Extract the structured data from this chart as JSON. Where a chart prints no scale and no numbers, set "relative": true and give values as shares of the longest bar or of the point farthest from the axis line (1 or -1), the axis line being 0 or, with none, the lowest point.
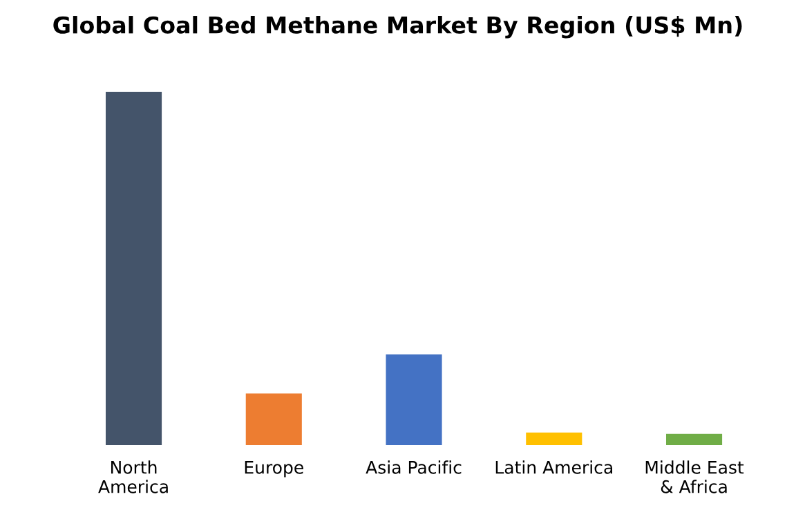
{
  "chart_data": {
    "type": "bar",
    "title": "Global Coal Bed Methane Market By Region (US$ Mn)",
    "categories": [
      "North\nAmerica",
      "Europe",
      "Asia Pacific",
      "Latin America",
      "Middle East\n& Africa"
    ],
    "values": [
      1,
      0.146,
      0.257,
      0.036,
      0.032
    ],
    "colors": [
      "#44546a",
      "#ed7d31",
      "#4472c4",
      "#ffc000",
      "#70ad47"
    ],
    "relative": true,
    "grid": false,
    "legend": false
  }
}
